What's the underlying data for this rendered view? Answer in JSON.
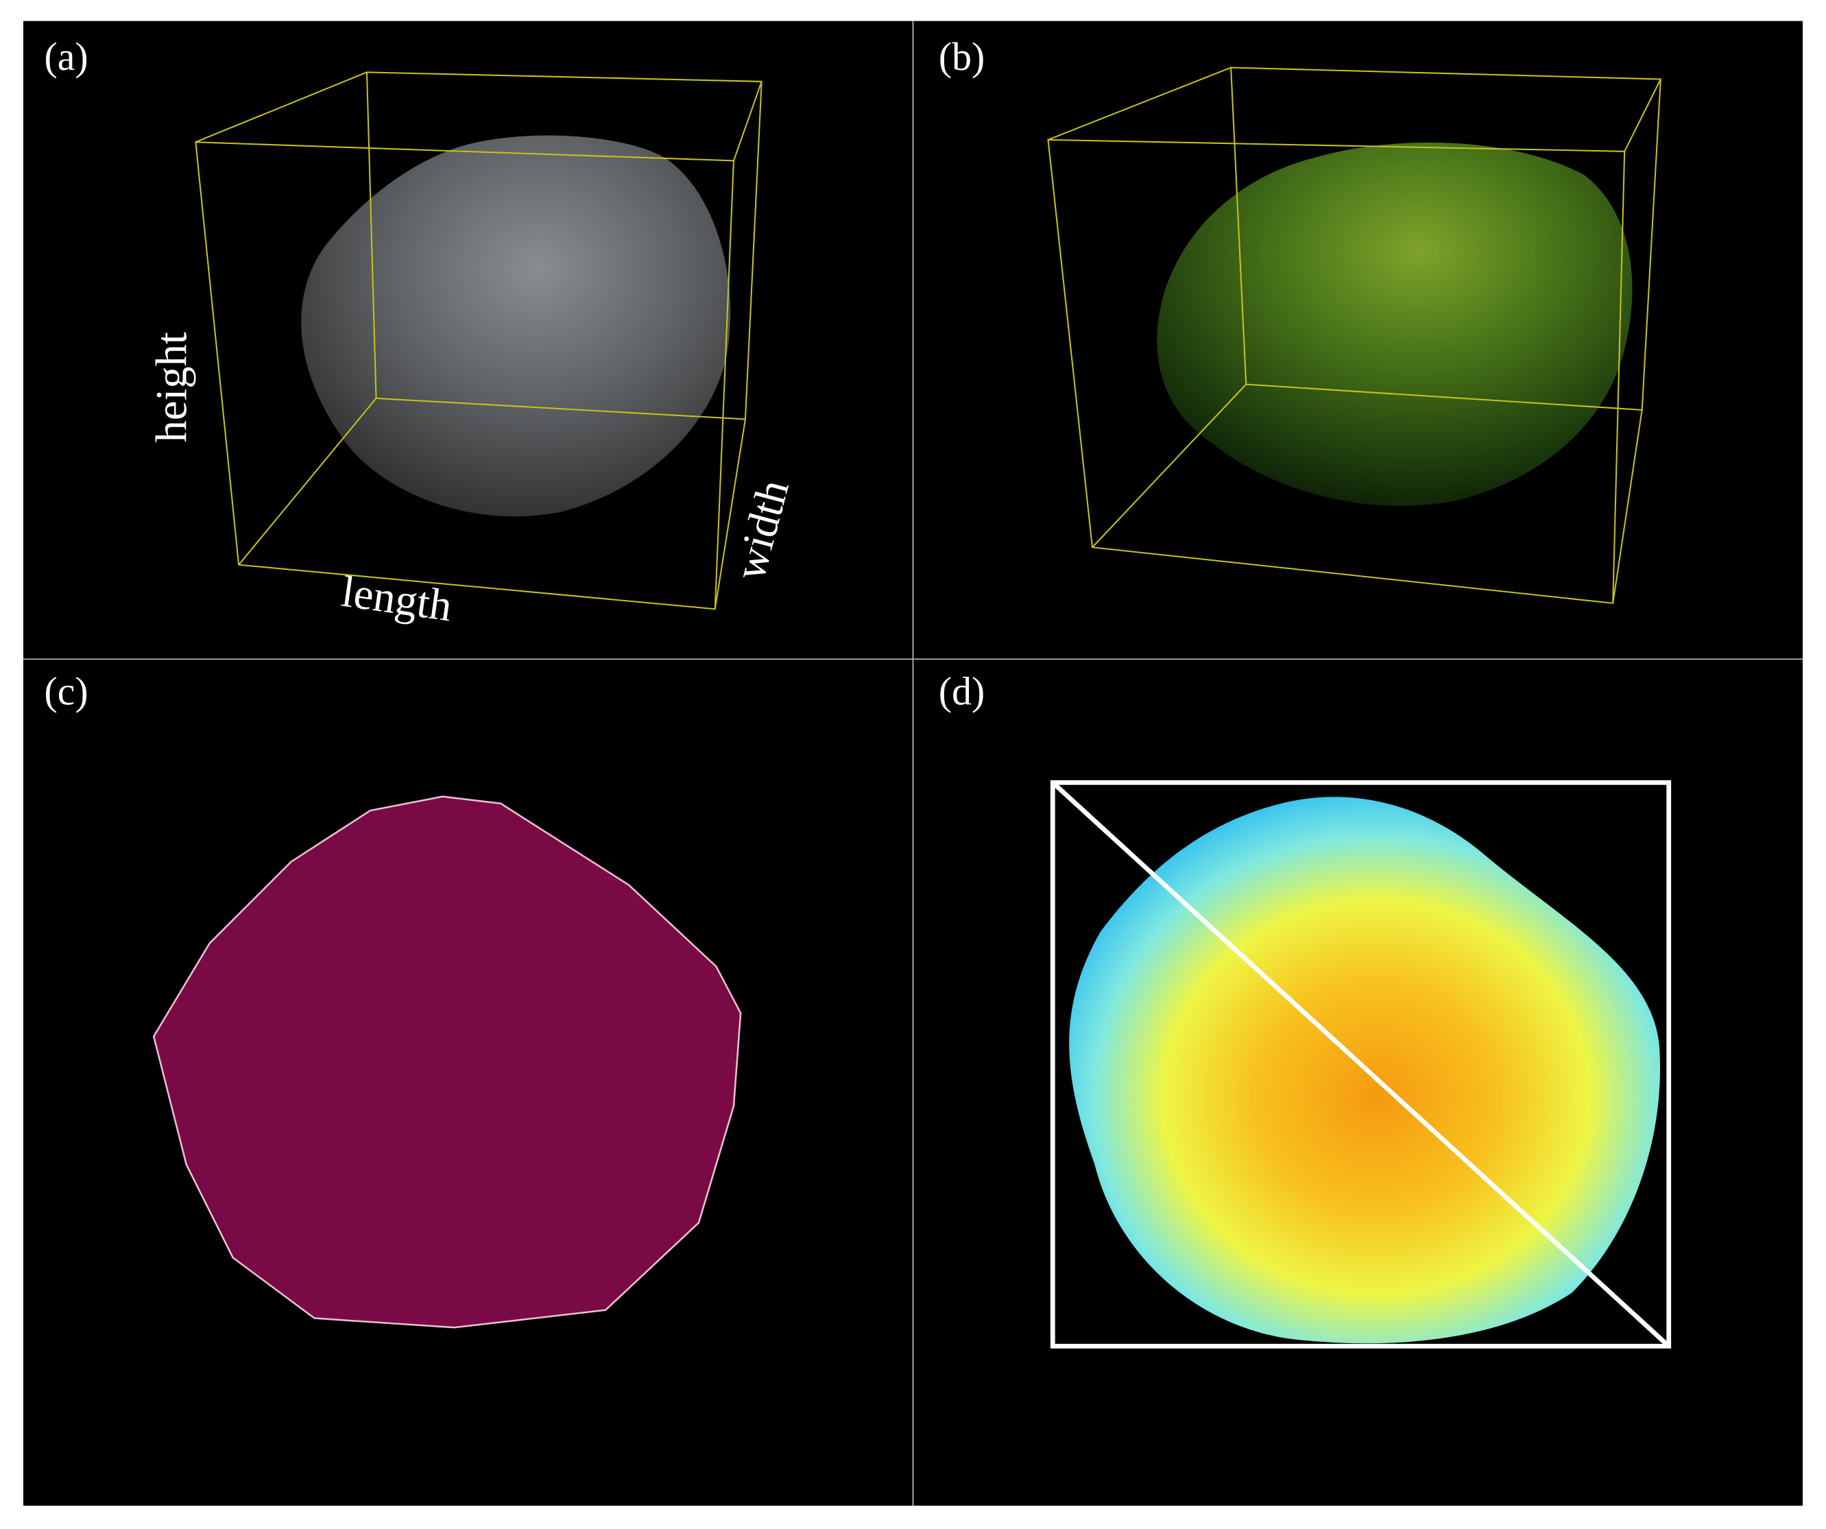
{
  "panels": [
    {
      "label": "(a)",
      "annotations": {
        "height": "height",
        "length": "length",
        "width": "width"
      }
    },
    {
      "label": "(b)"
    },
    {
      "label": "(c)"
    },
    {
      "label": "(d)"
    }
  ]
}
